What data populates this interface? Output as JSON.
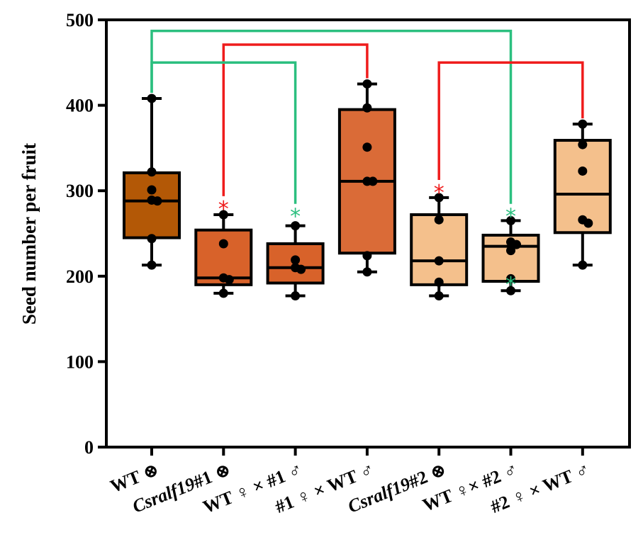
{
  "chart_data": {
    "type": "box",
    "ylabel": "Seed number per fruit",
    "xlabel": "",
    "ylim": [
      0,
      500
    ],
    "yticks": [
      0,
      100,
      200,
      300,
      400,
      500
    ],
    "grid": false,
    "categories": [
      {
        "label": "WT ⊗",
        "label_parts": [
          {
            "t": "WT ⊗",
            "italic": false
          }
        ]
      },
      {
        "label": "Csralf19#1 ⊗",
        "label_parts": [
          {
            "t": "Csralf19",
            "italic": true
          },
          {
            "t": "#1 ⊗",
            "italic": false
          }
        ]
      },
      {
        "label": "WT ♀ × #1 ♂",
        "label_parts": [
          {
            "t": "WT ♀ × #1 ♂",
            "italic": false
          }
        ]
      },
      {
        "label": "#1 ♀ × WT ♂",
        "label_parts": [
          {
            "t": "#1 ♀ × WT ♂",
            "italic": false
          }
        ]
      },
      {
        "label": "Csralf19#2 ⊗",
        "label_parts": [
          {
            "t": "Csralf19",
            "italic": true
          },
          {
            "t": "#2 ⊗",
            "italic": false
          }
        ]
      },
      {
        "label": "WT  ♀× #2 ♂",
        "label_parts": [
          {
            "t": "WT  ♀× #2 ♂",
            "italic": false
          }
        ]
      },
      {
        "label": "#2 ♀ × WT ♂",
        "label_parts": [
          {
            "t": "#2 ♀ × WT ♂",
            "italic": false
          }
        ]
      }
    ],
    "boxes": [
      {
        "min": 213,
        "q1": 245,
        "median": 288,
        "q3": 321,
        "max": 408,
        "fill": "#b35806",
        "points": [
          408,
          322,
          301,
          289,
          288,
          244,
          213
        ]
      },
      {
        "min": 180,
        "q1": 190,
        "median": 198,
        "q3": 254,
        "max": 272,
        "fill": "#d8622a",
        "points": [
          272,
          238,
          198,
          196,
          180
        ]
      },
      {
        "min": 177,
        "q1": 192,
        "median": 210,
        "q3": 238,
        "max": 259,
        "fill": "#d8622a",
        "points": [
          259,
          219,
          210,
          208,
          177
        ]
      },
      {
        "min": 205,
        "q1": 227,
        "median": 311,
        "q3": 395,
        "max": 425,
        "fill": "#da6b37",
        "points": [
          425,
          397,
          351,
          311,
          311,
          224,
          205
        ]
      },
      {
        "min": 177,
        "q1": 190,
        "median": 218,
        "q3": 272,
        "max": 292,
        "fill": "#f4c08c",
        "points": [
          292,
          266,
          218,
          193,
          177
        ]
      },
      {
        "min": 183,
        "q1": 194,
        "median": 235,
        "q3": 248,
        "max": 265,
        "fill": "#f4c08c",
        "points": [
          265,
          240,
          237,
          230,
          197,
          183
        ]
      },
      {
        "min": 213,
        "q1": 251,
        "median": 296,
        "q3": 359,
        "max": 378,
        "fill": "#f4c08c",
        "points": [
          378,
          354,
          323,
          266,
          262,
          213
        ]
      }
    ],
    "significance": [
      {
        "from": 0,
        "to": 5,
        "color": "#2bbf7f",
        "y": 487
      },
      {
        "from": 1,
        "to": 3,
        "color": "#ef1c1c",
        "y": 471
      },
      {
        "from": 0,
        "to": 2,
        "color": "#2bbf7f",
        "y": 450
      },
      {
        "from": 4,
        "to": 6,
        "color": "#ef1c1c",
        "y": 450
      }
    ],
    "stars": [
      {
        "category": 1,
        "value": 287,
        "color": "#ef1c1c",
        "text": "*"
      },
      {
        "category": 2,
        "value": 278,
        "color": "#2bbf7f",
        "text": "*"
      },
      {
        "category": 4,
        "value": 306,
        "color": "#ef1c1c",
        "text": "*"
      },
      {
        "category": 5,
        "value": 278,
        "color": "#2bbf7f",
        "text": "*"
      },
      {
        "category": 5,
        "value": 198,
        "color": "#2bbf7f",
        "text": "*"
      }
    ]
  }
}
